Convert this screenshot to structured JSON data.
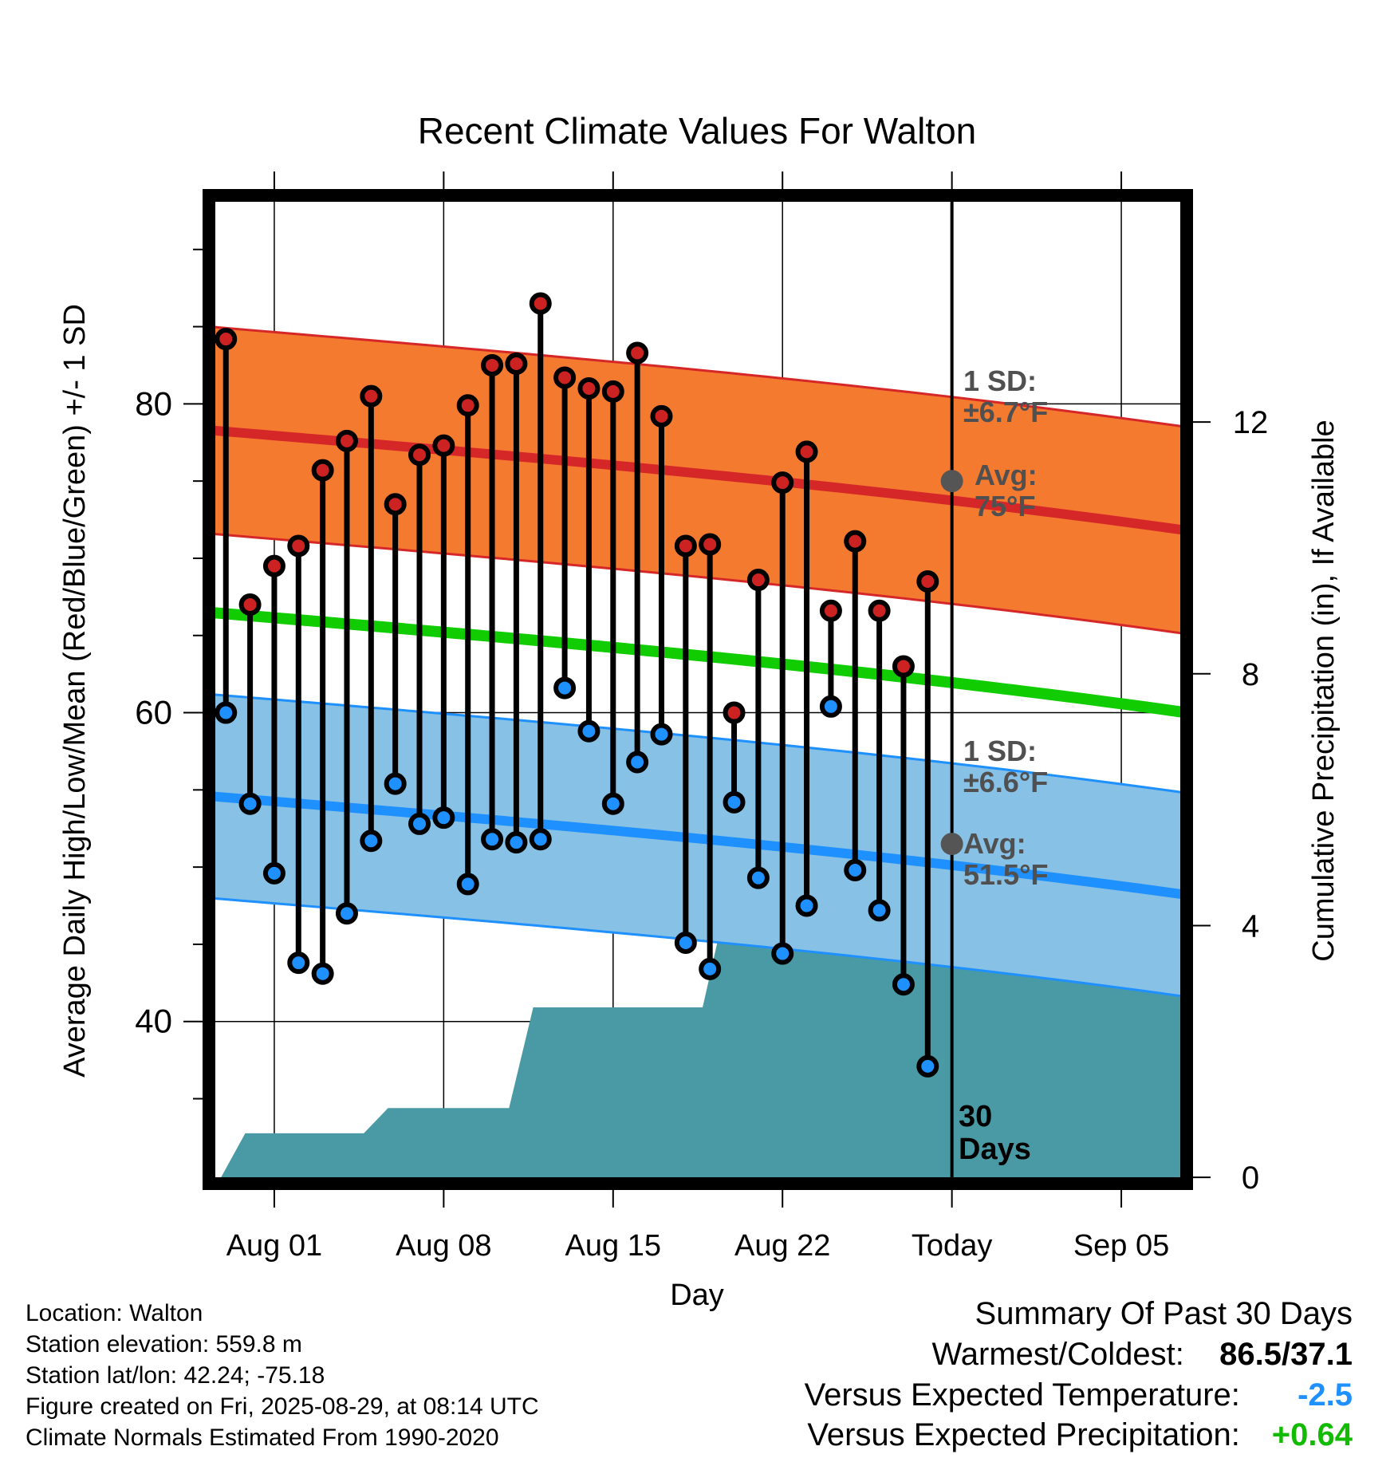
{
  "chart_data": {
    "type": "line",
    "title": "Recent Climate Values For Walton",
    "xlabel": "Day",
    "ylabel": "Average Daily High/Low/Mean (Red/Blue/Green) +/- 1 SD",
    "y2label": "Cumulative Precipitation (in), If Available",
    "x_ticks": [
      {
        "day": 2,
        "label": "Aug 01"
      },
      {
        "day": 9,
        "label": "Aug 08"
      },
      {
        "day": 16,
        "label": "Aug 15"
      },
      {
        "day": 23,
        "label": "Aug 22"
      },
      {
        "day": 30,
        "label": "Today"
      },
      {
        "day": 37,
        "label": "Sep 05"
      }
    ],
    "x_range_days": [
      -0.7,
      39.7
    ],
    "ylim": [
      29.5,
      93.5
    ],
    "y_ticks": [
      40,
      60,
      80
    ],
    "y2lim": [
      -0.1,
      15.6
    ],
    "y2_ticks": [
      0,
      4,
      8,
      12
    ],
    "grid": true,
    "today_day": 30,
    "today_label": "30\nDays",
    "daily": {
      "day": [
        0,
        1,
        2,
        3,
        4,
        5,
        6,
        7,
        8,
        9,
        10,
        11,
        12,
        13,
        14,
        15,
        16,
        17,
        18,
        19,
        20,
        21,
        22,
        23,
        24,
        25,
        26,
        27,
        28,
        29
      ],
      "high": [
        84.2,
        67.0,
        69.5,
        70.8,
        75.7,
        77.6,
        80.5,
        73.5,
        76.7,
        77.3,
        79.9,
        82.5,
        82.6,
        86.5,
        81.7,
        81.0,
        80.8,
        83.3,
        79.2,
        70.8,
        70.9,
        60.0,
        68.6,
        74.9,
        76.9,
        66.6,
        71.1,
        66.6,
        63.0,
        68.5
      ],
      "low": [
        60.0,
        54.1,
        49.6,
        43.8,
        43.1,
        47.0,
        51.7,
        55.4,
        52.8,
        53.2,
        48.9,
        51.8,
        51.6,
        51.8,
        61.6,
        58.8,
        54.1,
        56.8,
        58.6,
        45.1,
        43.4,
        54.2,
        49.3,
        44.4,
        47.5,
        60.4,
        49.8,
        47.2,
        42.4,
        37.1
      ]
    },
    "normal_high": {
      "day_start": -0.7,
      "day_end": 39.7,
      "values_start": 78.3,
      "values_end": 72.6,
      "sd": 6.7,
      "sd_label": "1 SD:\n±6.7°F",
      "avg_at_today": 75.0,
      "avg_label": "Avg:\n75°F"
    },
    "normal_low": {
      "day_start": -0.7,
      "day_end": 39.7,
      "values_start": 54.6,
      "values_end": 49.0,
      "sd": 6.6,
      "sd_label": "1 SD:\n±6.6°F",
      "avg_at_today": 51.5,
      "avg_label": "Avg:\n51.5°F"
    },
    "normal_mean": {
      "values_start": 66.5,
      "values_end": 60.8
    },
    "precip_cumulative": {
      "day": [
        -0.2,
        0.8,
        1.2,
        5.7,
        6.7,
        9.7,
        11.7,
        12.7,
        15.7,
        19.7,
        20.7,
        23.7,
        24.7,
        25.7,
        26.7,
        27.7,
        39.7
      ],
      "inches": [
        0.0,
        0.7,
        0.7,
        0.7,
        1.1,
        1.1,
        1.1,
        2.7,
        2.7,
        2.7,
        4.4,
        4.4,
        4.6,
        5.0,
        5.2,
        5.2,
        5.2
      ]
    },
    "colors": {
      "high_band": "#f47a30",
      "high_line": "#d62728",
      "high_marker": "#cc2222",
      "low_band": "#87c1e6",
      "low_line": "#1e90ff",
      "low_marker": "#1e90ff",
      "mean_line": "#11cc00",
      "precip_fill": "#4a9aa5",
      "avg_dot": "#555555"
    }
  },
  "footer": {
    "location": "Location: Walton",
    "elevation": "Station elevation: 559.8 m",
    "latlon": "Station lat/lon: 42.24; -75.18",
    "created": "Figure created on Fri, 2025-08-29, at 08:14 UTC",
    "normals": "Climate Normals Estimated From 1990-2020"
  },
  "summary": {
    "title": "Summary Of Past 30 Days",
    "warmest_label": "Warmest/Coldest:",
    "warmest_value": "86.5/37.1",
    "temp_label": "Versus Expected Temperature:",
    "temp_value": "-2.5",
    "temp_color": "#1e90ff",
    "precip_label": "Versus Expected Precipitation:",
    "precip_value": "+0.64",
    "precip_color": "#11bb00"
  }
}
